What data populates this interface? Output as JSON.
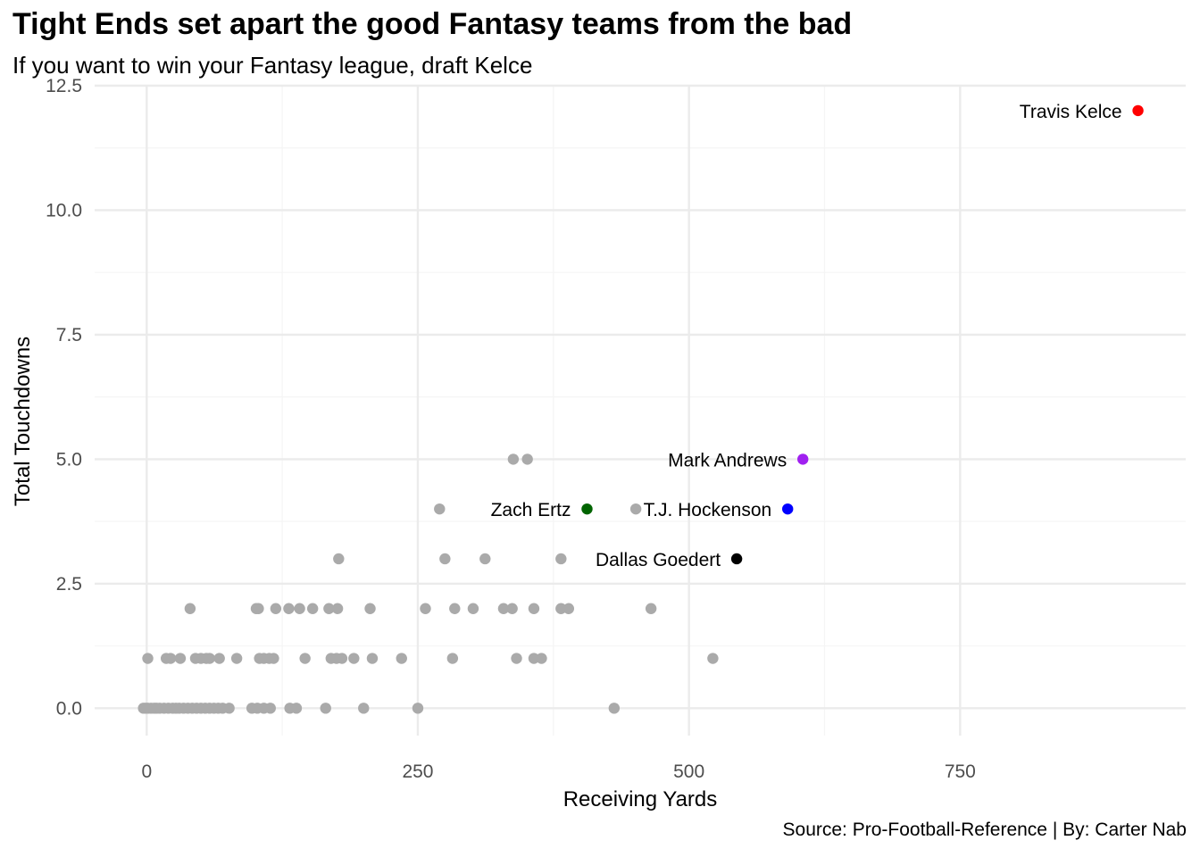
{
  "chart_data": {
    "type": "scatter",
    "title": "Tight Ends set apart the good Fantasy teams from the bad",
    "subtitle": "If you want to win your Fantasy league, draft Kelce",
    "caption": "Source: Pro-Football-Reference | By: Carter Nab",
    "xlabel": "Receiving Yards",
    "ylabel": "Total Touchdowns",
    "xlim": [
      -48,
      958
    ],
    "ylim": [
      -0.55,
      12.5
    ],
    "x_ticks": [
      0,
      250,
      500,
      750
    ],
    "x_tick_labels": [
      "0",
      "250",
      "500",
      "750"
    ],
    "y_ticks": [
      0,
      2.5,
      5,
      7.5,
      10,
      12.5
    ],
    "y_tick_labels": [
      "0.0",
      "2.5",
      "5.0",
      "7.5",
      "10.0",
      "12.5"
    ],
    "grid": true,
    "legend": "none",
    "background_color": "#aaaaaa",
    "background_points": [
      {
        "x": -3,
        "y": 0
      },
      {
        "x": -1,
        "y": 0
      },
      {
        "x": 1,
        "y": 0
      },
      {
        "x": 4,
        "y": 0
      },
      {
        "x": 7,
        "y": 0
      },
      {
        "x": 9,
        "y": 0
      },
      {
        "x": 12,
        "y": 0
      },
      {
        "x": 16,
        "y": 0
      },
      {
        "x": 20,
        "y": 0
      },
      {
        "x": 24,
        "y": 0
      },
      {
        "x": 27,
        "y": 0
      },
      {
        "x": 30,
        "y": 0
      },
      {
        "x": 34,
        "y": 0
      },
      {
        "x": 38,
        "y": 0
      },
      {
        "x": 42,
        "y": 0
      },
      {
        "x": 46,
        "y": 0
      },
      {
        "x": 50,
        "y": 0
      },
      {
        "x": 54,
        "y": 0
      },
      {
        "x": 58,
        "y": 0
      },
      {
        "x": 62,
        "y": 0
      },
      {
        "x": 66,
        "y": 0
      },
      {
        "x": 70,
        "y": 0
      },
      {
        "x": 76,
        "y": 0
      },
      {
        "x": 97,
        "y": 0
      },
      {
        "x": 102,
        "y": 0
      },
      {
        "x": 108,
        "y": 0
      },
      {
        "x": 114,
        "y": 0
      },
      {
        "x": 132,
        "y": 0
      },
      {
        "x": 138,
        "y": 0
      },
      {
        "x": 165,
        "y": 0
      },
      {
        "x": 200,
        "y": 0
      },
      {
        "x": 250,
        "y": 0
      },
      {
        "x": 431,
        "y": 0
      },
      {
        "x": 1,
        "y": 1
      },
      {
        "x": 18,
        "y": 1
      },
      {
        "x": 22,
        "y": 1
      },
      {
        "x": 31,
        "y": 1
      },
      {
        "x": 45,
        "y": 1
      },
      {
        "x": 50,
        "y": 1
      },
      {
        "x": 55,
        "y": 1
      },
      {
        "x": 58,
        "y": 1
      },
      {
        "x": 67,
        "y": 1
      },
      {
        "x": 83,
        "y": 1
      },
      {
        "x": 104,
        "y": 1
      },
      {
        "x": 108,
        "y": 1
      },
      {
        "x": 113,
        "y": 1
      },
      {
        "x": 117,
        "y": 1
      },
      {
        "x": 146,
        "y": 1
      },
      {
        "x": 170,
        "y": 1
      },
      {
        "x": 175,
        "y": 1
      },
      {
        "x": 180,
        "y": 1
      },
      {
        "x": 191,
        "y": 1
      },
      {
        "x": 208,
        "y": 1
      },
      {
        "x": 235,
        "y": 1
      },
      {
        "x": 282,
        "y": 1
      },
      {
        "x": 341,
        "y": 1
      },
      {
        "x": 357,
        "y": 1
      },
      {
        "x": 364,
        "y": 1
      },
      {
        "x": 522,
        "y": 1
      },
      {
        "x": 40,
        "y": 2
      },
      {
        "x": 101,
        "y": 2
      },
      {
        "x": 103,
        "y": 2
      },
      {
        "x": 119,
        "y": 2
      },
      {
        "x": 131,
        "y": 2
      },
      {
        "x": 141,
        "y": 2
      },
      {
        "x": 153,
        "y": 2
      },
      {
        "x": 168,
        "y": 2
      },
      {
        "x": 176,
        "y": 2
      },
      {
        "x": 206,
        "y": 2
      },
      {
        "x": 257,
        "y": 2
      },
      {
        "x": 284,
        "y": 2
      },
      {
        "x": 301,
        "y": 2
      },
      {
        "x": 329,
        "y": 2
      },
      {
        "x": 337,
        "y": 2
      },
      {
        "x": 357,
        "y": 2
      },
      {
        "x": 382,
        "y": 2
      },
      {
        "x": 389,
        "y": 2
      },
      {
        "x": 465,
        "y": 2
      },
      {
        "x": 177,
        "y": 3
      },
      {
        "x": 275,
        "y": 3
      },
      {
        "x": 312,
        "y": 3
      },
      {
        "x": 382,
        "y": 3
      },
      {
        "x": 270,
        "y": 4
      },
      {
        "x": 451,
        "y": 4
      },
      {
        "x": 338,
        "y": 5
      },
      {
        "x": 351,
        "y": 5
      }
    ],
    "highlighted": [
      {
        "name": "Travis Kelce",
        "x": 914,
        "y": 12,
        "color": "#ff0000"
      },
      {
        "name": "Mark Andrews",
        "x": 605,
        "y": 5,
        "color": "#a020f0"
      },
      {
        "name": "T.J. Hockenson",
        "x": 591,
        "y": 4,
        "color": "#0000ff"
      },
      {
        "name": "Zach Ertz",
        "x": 406,
        "y": 4,
        "color": "#006400"
      },
      {
        "name": "Dallas Goedert",
        "x": 544,
        "y": 3,
        "color": "#000000"
      }
    ]
  }
}
